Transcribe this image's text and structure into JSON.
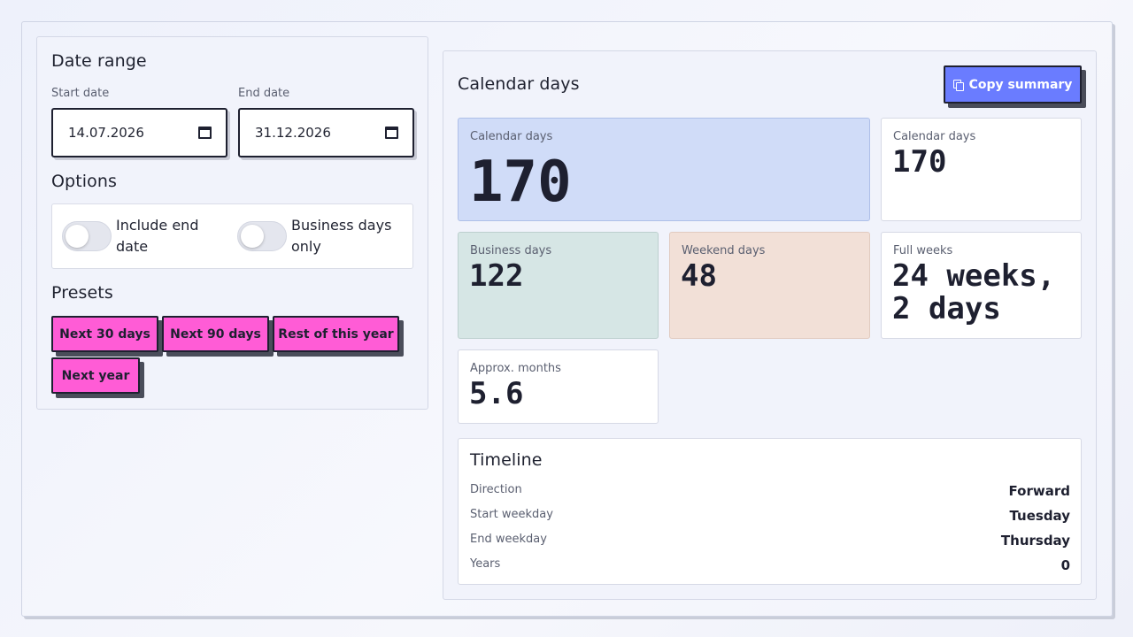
{
  "date_range": {
    "title": "Date range",
    "start_label": "Start date",
    "start_value": "14.07.2026",
    "end_label": "End date",
    "end_value": "31.12.2026"
  },
  "options": {
    "title": "Options",
    "include_end": {
      "line1": "Include end",
      "line2": "date",
      "checked": false
    },
    "business_only": {
      "line1": "Business days",
      "line2": "only",
      "checked": false
    }
  },
  "presets": {
    "title": "Presets",
    "items": [
      "Next 30 days",
      "Next 90 days",
      "Rest of this year",
      "Next year"
    ],
    "color": "#ff5cd6"
  },
  "results": {
    "title": "Calendar days",
    "copy_label": "Copy summary",
    "accent": "#6a7cff",
    "hero": {
      "label": "Calendar days",
      "value": "170"
    },
    "calendar": {
      "label": "Calendar days",
      "value": "170"
    },
    "business": {
      "label": "Business days",
      "value": "122"
    },
    "weekend": {
      "label": "Weekend days",
      "value": "48"
    },
    "full_weeks": {
      "label": "Full weeks",
      "value_line1": "24 weeks,",
      "value_line2": "2 days"
    },
    "months": {
      "label": "Approx. months",
      "value": "5.6"
    }
  },
  "timeline": {
    "title": "Timeline",
    "rows": [
      {
        "key": "Direction",
        "value": "Forward"
      },
      {
        "key": "Start weekday",
        "value": "Tuesday"
      },
      {
        "key": "End weekday",
        "value": "Thursday"
      },
      {
        "key": "Years",
        "value": "0"
      }
    ]
  }
}
